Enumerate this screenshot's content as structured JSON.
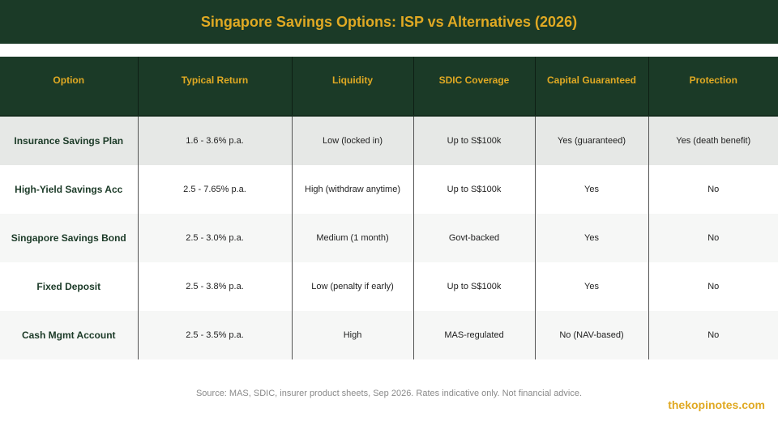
{
  "title": "Singapore Savings Options: ISP vs Alternatives (2026)",
  "table": {
    "headers": [
      "Option",
      "Typical Return",
      "Liquidity",
      "SDIC Coverage",
      "Capital Guaranteed",
      "Protection"
    ],
    "rows": [
      [
        "Insurance Savings Plan",
        "1.6 - 3.6% p.a.",
        "Low (locked in)",
        "Up to S$100k",
        "Yes (guaranteed)",
        "Yes (death benefit)"
      ],
      [
        "High-Yield Savings Acc",
        "2.5 - 7.65% p.a.",
        "High (withdraw anytime)",
        "Up to S$100k",
        "Yes",
        "No"
      ],
      [
        "Singapore Savings Bond",
        "2.5 - 3.0% p.a.",
        "Medium (1 month)",
        "Govt-backed",
        "Yes",
        "No"
      ],
      [
        "Fixed Deposit",
        "2.5 - 3.8% p.a.",
        "Low (penalty if early)",
        "Up to S$100k",
        "Yes",
        "No"
      ],
      [
        "Cash Mgmt Account",
        "2.5 - 3.5% p.a.",
        "High",
        "MAS-regulated",
        "No (NAV-based)",
        "No"
      ]
    ]
  },
  "footer": {
    "source": "Source: MAS, SDIC, insurer product sheets, Sep 2026. Rates indicative only. Not financial advice.",
    "brand": "thekopinotes.com"
  },
  "colors": {
    "header_bg": "#1b3a27",
    "accent": "#e0a923"
  }
}
